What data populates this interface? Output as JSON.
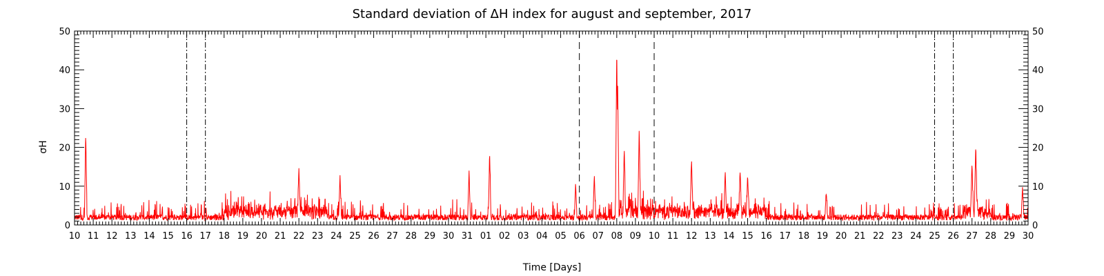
{
  "chart_data": {
    "type": "line",
    "title": "Standard deviation of ΔH index for august and september, 2017",
    "xlabel": "Time [Days]",
    "ylabel": "σH",
    "xlim": [
      0,
      51
    ],
    "ylim": [
      0,
      50
    ],
    "x_tick_labels": [
      "10",
      "11",
      "12",
      "13",
      "14",
      "15",
      "16",
      "17",
      "18",
      "19",
      "20",
      "21",
      "22",
      "23",
      "24",
      "25",
      "26",
      "27",
      "28",
      "29",
      "30",
      "31",
      "01",
      "02",
      "03",
      "04",
      "05",
      "06",
      "07",
      "08",
      "09",
      "10",
      "11",
      "12",
      "13",
      "14",
      "15",
      "16",
      "17",
      "18",
      "19",
      "20",
      "21",
      "22",
      "23",
      "24",
      "25",
      "26",
      "27",
      "28",
      "29",
      "30"
    ],
    "y_ticks": [
      0,
      10,
      20,
      30,
      40,
      50
    ],
    "series_color": "#ff0000",
    "reference_lines": [
      {
        "x": 6,
        "style": "dash-dot"
      },
      {
        "x": 7,
        "style": "dash-dot"
      },
      {
        "x": 27,
        "style": "dashed"
      },
      {
        "x": 31,
        "style": "dashed"
      },
      {
        "x": 46,
        "style": "dash-dot"
      },
      {
        "x": 47,
        "style": "dash-dot"
      }
    ],
    "peaks": [
      {
        "x": 0.6,
        "y": 24
      },
      {
        "x": 12.0,
        "y": 15
      },
      {
        "x": 14.2,
        "y": 13
      },
      {
        "x": 21.1,
        "y": 14
      },
      {
        "x": 22.2,
        "y": 19
      },
      {
        "x": 26.8,
        "y": 11
      },
      {
        "x": 27.8,
        "y": 13
      },
      {
        "x": 29.0,
        "y": 47
      },
      {
        "x": 29.05,
        "y": 36
      },
      {
        "x": 29.4,
        "y": 20
      },
      {
        "x": 30.2,
        "y": 25
      },
      {
        "x": 33.0,
        "y": 17
      },
      {
        "x": 34.8,
        "y": 14
      },
      {
        "x": 35.6,
        "y": 14
      },
      {
        "x": 36.0,
        "y": 13
      },
      {
        "x": 40.2,
        "y": 8
      },
      {
        "x": 48.0,
        "y": 16
      },
      {
        "x": 48.2,
        "y": 21
      },
      {
        "x": 50.7,
        "y": 10
      }
    ]
  }
}
